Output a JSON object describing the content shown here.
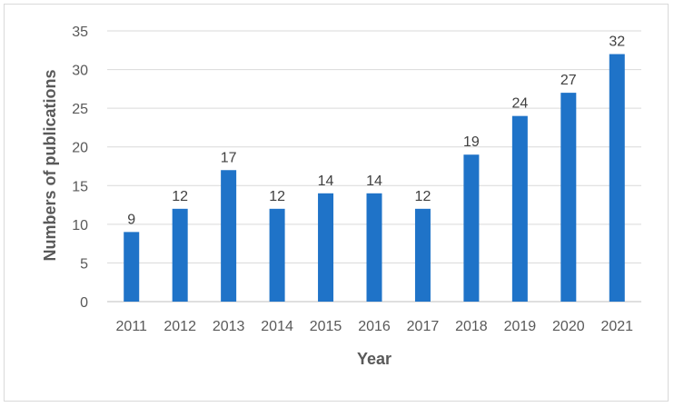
{
  "chart_data": {
    "type": "bar",
    "categories": [
      "2011",
      "2012",
      "2013",
      "2014",
      "2015",
      "2016",
      "2017",
      "2018",
      "2019",
      "2020",
      "2021"
    ],
    "values": [
      9,
      12,
      17,
      12,
      14,
      14,
      12,
      19,
      24,
      27,
      32
    ],
    "xlabel": "Year",
    "ylabel": "Numbers of publications",
    "ylim": [
      0,
      35
    ],
    "yticks": [
      0,
      5,
      10,
      15,
      20,
      25,
      30,
      35
    ],
    "grid": true,
    "legend": "none",
    "bar_color": "#1f73c8",
    "data_labels": true
  }
}
